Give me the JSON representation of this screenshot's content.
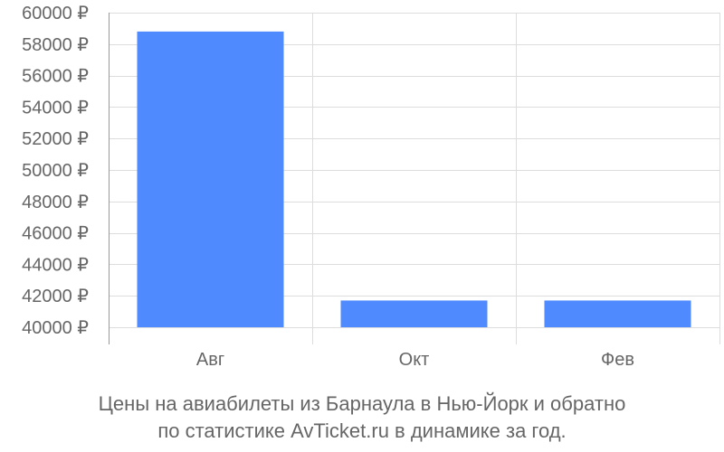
{
  "chart_data": {
    "type": "bar",
    "categories": [
      "Авг",
      "Окт",
      "Фев"
    ],
    "values": [
      58800,
      41700,
      41700
    ],
    "y_ticks": [
      "40000 ₽",
      "42000 ₽",
      "44000 ₽",
      "46000 ₽",
      "48000 ₽",
      "50000 ₽",
      "52000 ₽",
      "54000 ₽",
      "56000 ₽",
      "58000 ₽",
      "60000 ₽"
    ],
    "y_tick_values": [
      40000,
      42000,
      44000,
      46000,
      48000,
      50000,
      52000,
      54000,
      56000,
      58000,
      60000
    ],
    "ylim": [
      40000,
      60000
    ],
    "grid": true,
    "bar_color": "#4f8aff",
    "grid_color": "#dddddd",
    "axis_color": "#999999"
  },
  "caption": {
    "line1": "Цены на авиабилеты из Барнаула в Нью-Йорк и обратно",
    "line2": "по статистике AvTicket.ru в динамике за год."
  }
}
